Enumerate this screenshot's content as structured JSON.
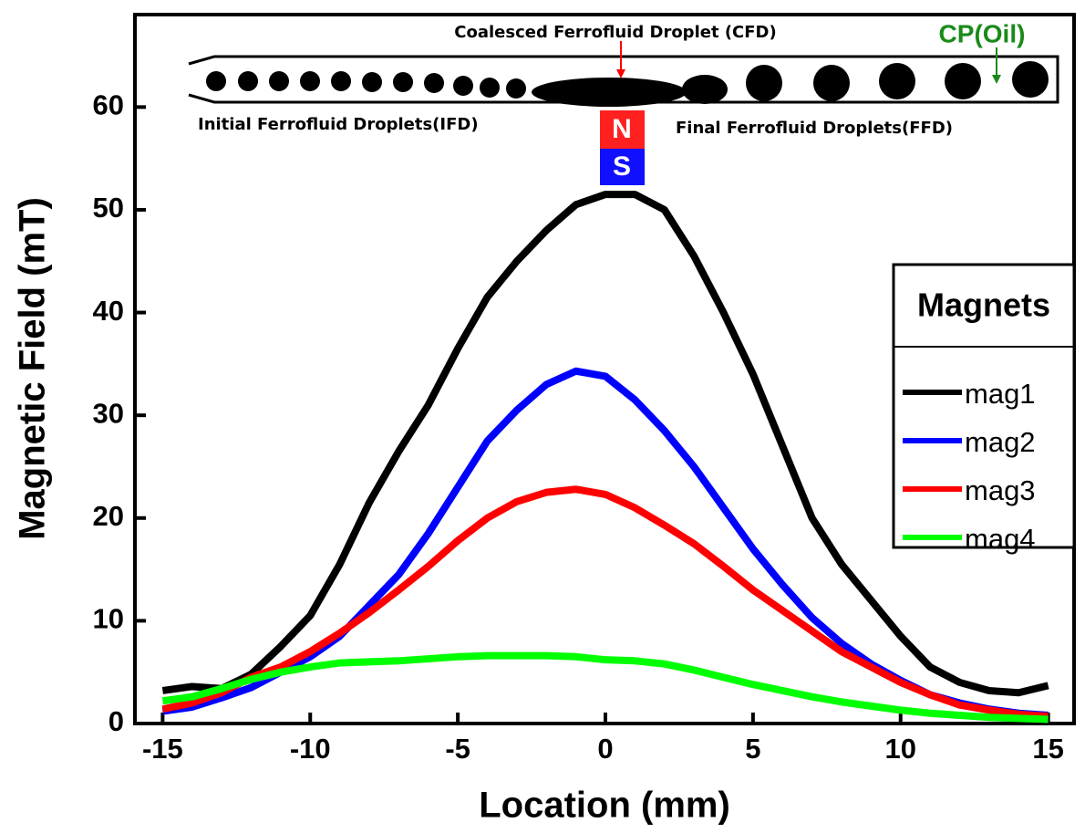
{
  "chart_data": {
    "type": "line",
    "x_label": "Location (mm)",
    "y_label": "Magnetic Field (mT)",
    "x": [
      -15,
      -14,
      -13,
      -12,
      -11,
      -10,
      -9,
      -8,
      -7,
      -6,
      -5,
      -4,
      -3,
      -2,
      -1,
      0,
      1,
      2,
      3,
      4,
      5,
      6,
      7,
      8,
      9,
      10,
      11,
      12,
      13,
      14,
      15
    ],
    "series": [
      {
        "name": "mag1",
        "color": "#000000",
        "values": [
          3.2,
          3.6,
          3.4,
          4.8,
          7.5,
          10.5,
          15.5,
          21.5,
          26.5,
          31,
          36.5,
          41.5,
          45,
          48,
          50.5,
          51.5,
          51.5,
          50,
          45.5,
          40,
          34,
          27,
          20,
          15.5,
          12,
          8.5,
          5.5,
          4,
          3.2,
          3,
          3.7
        ]
      },
      {
        "name": "mag2",
        "color": "#0000ff",
        "values": [
          1.2,
          1.6,
          2.5,
          3.5,
          5,
          6.5,
          8.5,
          11.5,
          14.5,
          18.5,
          23,
          27.5,
          30.5,
          33,
          34.3,
          33.8,
          31.5,
          28.5,
          25,
          21,
          17,
          13.5,
          10.3,
          7.8,
          5.8,
          4.2,
          2.8,
          2,
          1.4,
          1,
          0.8
        ]
      },
      {
        "name": "mag3",
        "color": "#ff0000",
        "values": [
          1.4,
          2,
          3,
          4.5,
          5.5,
          7,
          8.8,
          10.8,
          13,
          15.3,
          17.8,
          20,
          21.6,
          22.5,
          22.8,
          22.3,
          21,
          19.3,
          17.5,
          15.3,
          13,
          11,
          9,
          7,
          5.5,
          4,
          2.8,
          1.8,
          1.3,
          0.9,
          0.7
        ]
      },
      {
        "name": "mag4",
        "color": "#00ff00",
        "values": [
          2.2,
          2.6,
          3.4,
          4.3,
          5,
          5.5,
          5.9,
          6,
          6.1,
          6.3,
          6.5,
          6.6,
          6.6,
          6.6,
          6.5,
          6.2,
          6.1,
          5.8,
          5.2,
          4.5,
          3.8,
          3.2,
          2.6,
          2.1,
          1.7,
          1.3,
          1,
          0.8,
          0.6,
          0.5,
          0.4
        ]
      }
    ],
    "xlim": [
      -16,
      16
    ],
    "xticks": [
      -15,
      -10,
      -5,
      0,
      5,
      10,
      15
    ],
    "ylim": [
      0,
      69
    ],
    "yticks": [
      0,
      10,
      20,
      30,
      40,
      50,
      60
    ],
    "legend_title": "Magnets",
    "legend_position": "right",
    "annotations": {
      "cfd": "Coalesced Ferrofluid Droplet (CFD)",
      "cp": "CP(Oil)",
      "ifd": "Initial Ferrofluid Droplets(IFD)",
      "ffd": "Final Ferrofluid Droplets(FFD)",
      "north": "N",
      "south": "S"
    }
  }
}
